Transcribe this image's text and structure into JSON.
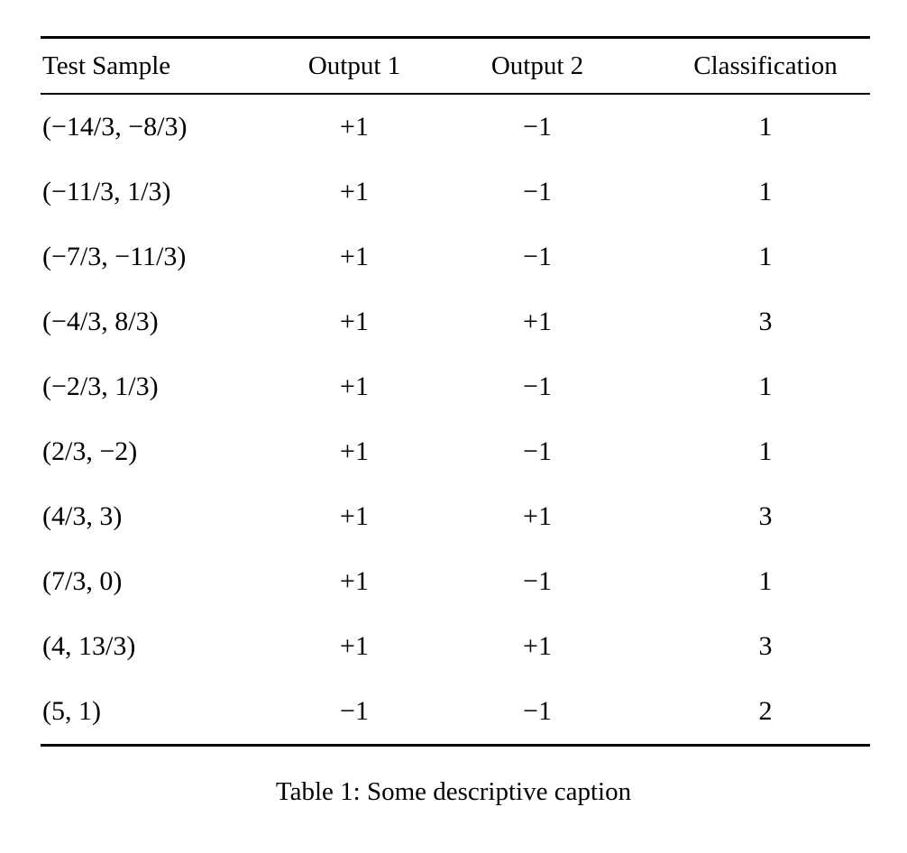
{
  "table": {
    "columns": [
      "Test Sample",
      "Output 1",
      "Output 2",
      "Classification"
    ],
    "rows": [
      [
        "(−14/3, −8/3)",
        "+1",
        "−1",
        "1"
      ],
      [
        "(−11/3, 1/3)",
        "+1",
        "−1",
        "1"
      ],
      [
        "(−7/3, −11/3)",
        "+1",
        "−1",
        "1"
      ],
      [
        "(−4/3, 8/3)",
        "+1",
        "+1",
        "3"
      ],
      [
        "(−2/3, 1/3)",
        "+1",
        "−1",
        "1"
      ],
      [
        "(2/3, −2)",
        "+1",
        "−1",
        "1"
      ],
      [
        "(4/3, 3)",
        "+1",
        "+1",
        "3"
      ],
      [
        "(7/3, 0)",
        "+1",
        "−1",
        "1"
      ],
      [
        "(4, 13/3)",
        "+1",
        "+1",
        "3"
      ],
      [
        "(5, 1)",
        "−1",
        "−1",
        "2"
      ]
    ],
    "caption": "Table 1: Some descriptive caption"
  },
  "chart_data": {
    "type": "table",
    "columns": [
      "Test Sample",
      "Output 1",
      "Output 2",
      "Classification"
    ],
    "rows": [
      [
        "(−14/3, −8/3)",
        "+1",
        "−1",
        "1"
      ],
      [
        "(−11/3, 1/3)",
        "+1",
        "−1",
        "1"
      ],
      [
        "(−7/3, −11/3)",
        "+1",
        "−1",
        "1"
      ],
      [
        "(−4/3, 8/3)",
        "+1",
        "+1",
        "3"
      ],
      [
        "(−2/3, 1/3)",
        "+1",
        "−1",
        "1"
      ],
      [
        "(2/3, −2)",
        "+1",
        "−1",
        "1"
      ],
      [
        "(4/3, 3)",
        "+1",
        "+1",
        "3"
      ],
      [
        "(7/3, 0)",
        "+1",
        "−1",
        "1"
      ],
      [
        "(4, 13/3)",
        "+1",
        "+1",
        "3"
      ],
      [
        "(5, 1)",
        "−1",
        "−1",
        "2"
      ]
    ],
    "title": "Table 1: Some descriptive caption"
  }
}
